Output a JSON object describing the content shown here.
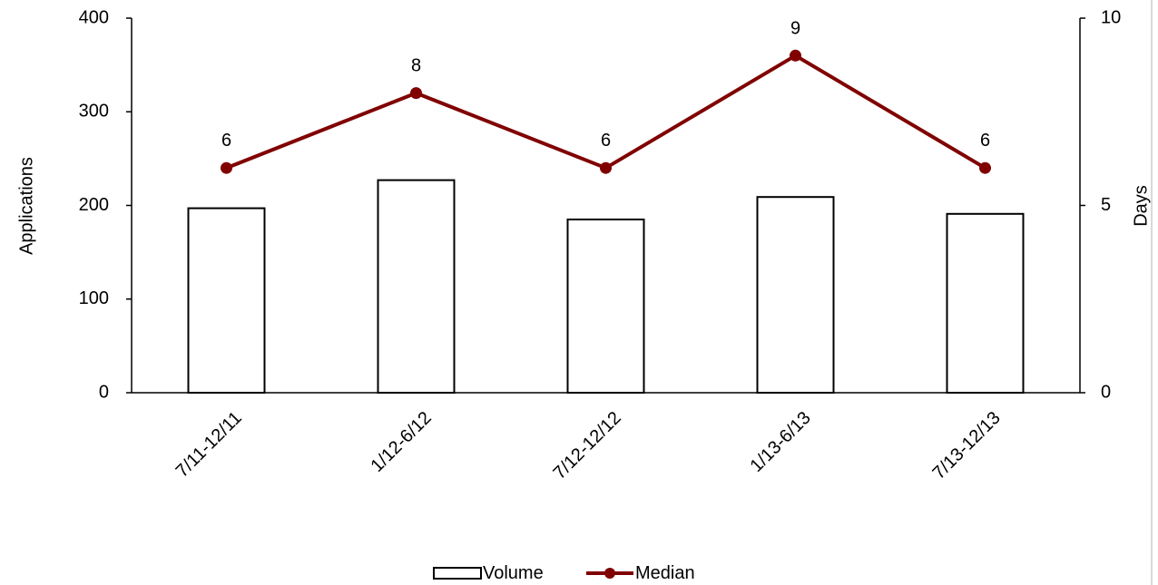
{
  "chart_data": {
    "type": "bar",
    "categories": [
      "7/11-12/11",
      "1/12-6/12",
      "7/12-12/12",
      "1/13-6/13",
      "7/13-12/13"
    ],
    "series": [
      {
        "name": "Volume",
        "type": "bar",
        "axis": "left",
        "values": [
          197,
          227,
          185,
          209,
          191
        ],
        "fill": "#ffffff",
        "stroke": "#000000"
      },
      {
        "name": "Median",
        "type": "line",
        "axis": "right",
        "values": [
          6,
          8,
          6,
          9,
          6
        ],
        "data_labels": [
          "6",
          "8",
          "6",
          "9",
          "6"
        ],
        "color": "#800000"
      }
    ],
    "y_left": {
      "label": "Applications",
      "ylim": [
        0,
        400
      ],
      "ticks": [
        "0",
        "100",
        "200",
        "300",
        "400"
      ]
    },
    "y_right": {
      "label": "Days",
      "ylim": [
        0,
        10
      ],
      "ticks": [
        "0",
        "5",
        "10"
      ]
    },
    "legend_placement": "bottom",
    "grid": false
  }
}
